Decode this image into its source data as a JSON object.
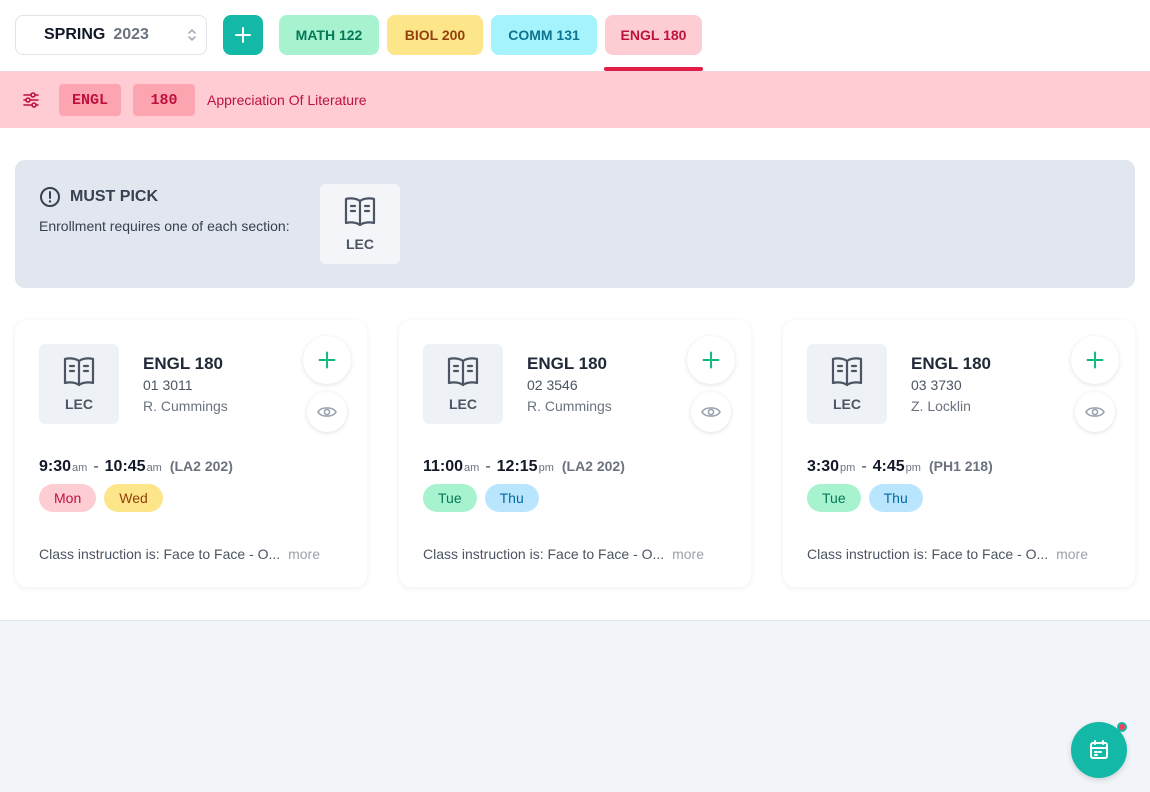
{
  "term": {
    "season": "SPRING",
    "year": "2023"
  },
  "course_tabs": [
    {
      "label": "MATH 122",
      "bg": "#a7f3d0",
      "fg": "#047857"
    },
    {
      "label": "BIOL 200",
      "bg": "#fde68a",
      "fg": "#92400e"
    },
    {
      "label": "COMM 131",
      "bg": "#a5f3fc",
      "fg": "#0e7490"
    },
    {
      "label": "ENGL 180",
      "bg": "#fecdd3",
      "fg": "#be123c",
      "active": true
    }
  ],
  "course": {
    "subject": "ENGL",
    "number": "180",
    "title": "Appreciation Of Literature"
  },
  "must_pick": {
    "heading": "MUST PICK",
    "description": "Enrollment requires one of each section:",
    "section_type": "LEC"
  },
  "sections": [
    {
      "type": "LEC",
      "course": "ENGL 180",
      "section": "01 3011",
      "instructor": "R. Cummings",
      "start": "9:30",
      "start_ampm": "am",
      "end": "10:45",
      "end_ampm": "am",
      "room": "(LA2 202)",
      "days": [
        "Mon",
        "Wed"
      ],
      "note": "Class instruction is: Face to Face - O...",
      "more": "more"
    },
    {
      "type": "LEC",
      "course": "ENGL 180",
      "section": "02 3546",
      "instructor": "R. Cummings",
      "start": "11:00",
      "start_ampm": "am",
      "end": "12:15",
      "end_ampm": "pm",
      "room": "(LA2 202)",
      "days": [
        "Tue",
        "Thu"
      ],
      "note": "Class instruction is: Face to Face - O...",
      "more": "more"
    },
    {
      "type": "LEC",
      "course": "ENGL 180",
      "section": "03 3730",
      "instructor": "Z. Locklin",
      "start": "3:30",
      "start_ampm": "pm",
      "end": "4:45",
      "end_ampm": "pm",
      "room": "(PH1 218)",
      "days": [
        "Tue",
        "Thu"
      ],
      "note": "Class instruction is: Face to Face - O...",
      "more": "more"
    }
  ],
  "day_colors": {
    "Mon": {
      "bg": "#fecdd3",
      "fg": "#be123c"
    },
    "Wed": {
      "bg": "#fde68a",
      "fg": "#92400e"
    },
    "Tue": {
      "bg": "#a7f3d0",
      "fg": "#047857"
    },
    "Thu": {
      "bg": "#bae6fd",
      "fg": "#0369a1"
    }
  },
  "colors": {
    "accent": "#14b8a6",
    "active_tab": "#e11d48",
    "notification": "#f43f5e"
  },
  "icons": {
    "filter": "sliders-icon",
    "add": "plus-icon",
    "info": "exclamation-circle-icon",
    "lecture": "book-open-icon",
    "view": "eye-icon",
    "calendar": "calendar-icon",
    "term_select": "chevron-up-down-icon"
  }
}
